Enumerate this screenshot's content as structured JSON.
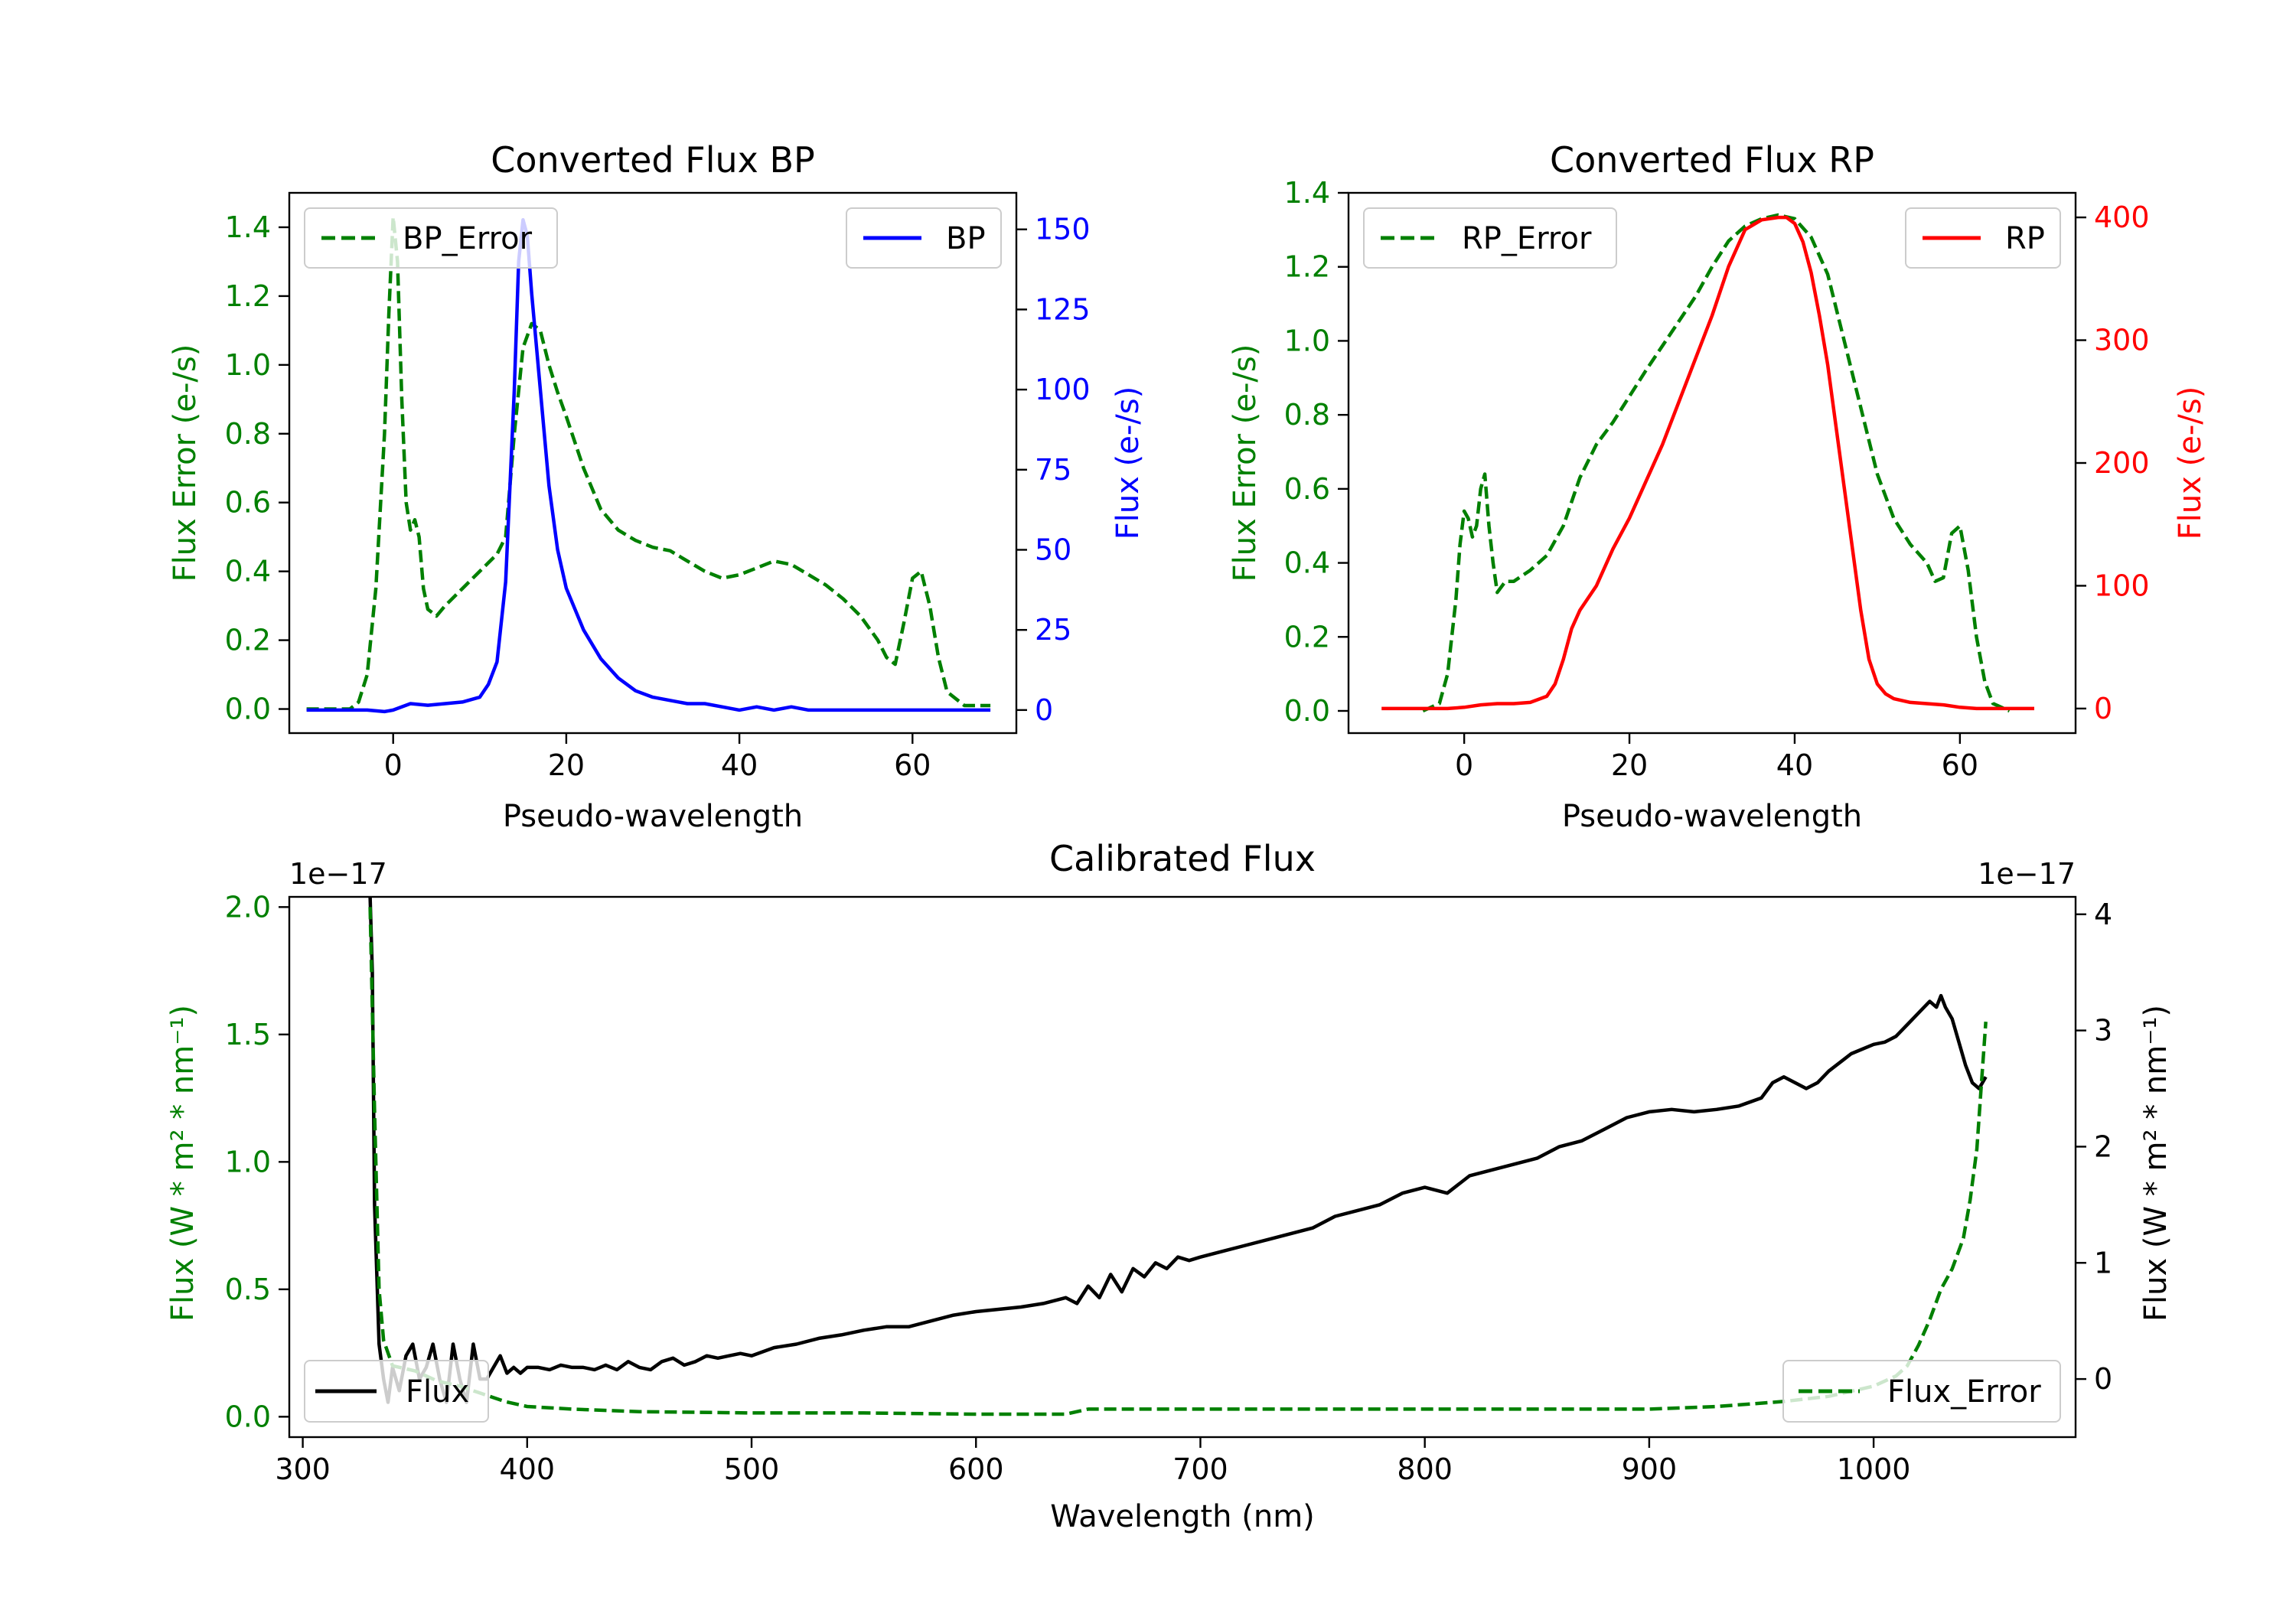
{
  "chart_data": [
    {
      "type": "line",
      "title": "Converted Flux BP",
      "xlabel": "Pseudo-wavelength",
      "ylabel_left": "Flux Error (e-/s)",
      "ylabel_right": "Flux (e-/s)",
      "xlim": [
        -12,
        72
      ],
      "ylim_left": [
        -0.07,
        1.5
      ],
      "ylim_right": [
        -7.2,
        161.4
      ],
      "xticks": [
        0,
        20,
        40,
        60
      ],
      "yticks_left": [
        0.0,
        0.2,
        0.4,
        0.6,
        0.8,
        1.0,
        1.2,
        1.4
      ],
      "yticks_right": [
        0,
        25,
        50,
        75,
        100,
        125,
        150
      ],
      "left_color": "#008000",
      "right_color": "#0000ff",
      "legend_left": {
        "label": "BP_Error",
        "position": "upper left"
      },
      "legend_right": {
        "label": "BP",
        "position": "upper right"
      },
      "series": [
        {
          "name": "BP_Error",
          "axis": "left",
          "color": "#008000",
          "dash": "dashed",
          "x": [
            -10,
            -5,
            -4,
            -3,
            -2,
            -1,
            -0.5,
            0,
            0.5,
            1,
            1.5,
            2,
            2.5,
            3,
            3.5,
            4,
            5,
            6,
            8,
            10,
            12,
            13,
            14,
            15,
            16,
            17,
            18,
            19,
            20,
            22,
            24,
            26,
            28,
            30,
            32,
            34,
            36,
            38,
            40,
            42,
            44,
            46,
            48,
            50,
            52,
            54,
            56,
            57,
            58,
            59,
            60,
            61,
            62,
            63,
            64,
            66,
            69
          ],
          "y": [
            0,
            0,
            0.02,
            0.1,
            0.35,
            0.8,
            1.15,
            1.43,
            1.3,
            0.9,
            0.6,
            0.52,
            0.55,
            0.5,
            0.35,
            0.29,
            0.27,
            0.3,
            0.35,
            0.4,
            0.45,
            0.5,
            0.8,
            1.05,
            1.12,
            1.1,
            1.0,
            0.92,
            0.85,
            0.7,
            0.58,
            0.52,
            0.49,
            0.47,
            0.46,
            0.43,
            0.4,
            0.38,
            0.39,
            0.41,
            0.43,
            0.42,
            0.39,
            0.36,
            0.32,
            0.27,
            0.2,
            0.15,
            0.13,
            0.25,
            0.38,
            0.4,
            0.3,
            0.15,
            0.05,
            0.01,
            0.01
          ]
        },
        {
          "name": "BP",
          "axis": "right",
          "color": "#0000ff",
          "dash": "solid",
          "x": [
            -10,
            -6,
            -3,
            -1,
            0,
            2,
            4,
            6,
            8,
            10,
            11,
            12,
            13,
            14,
            14.5,
            15,
            15.5,
            16,
            17,
            18,
            19,
            20,
            22,
            24,
            26,
            28,
            30,
            32,
            34,
            36,
            38,
            40,
            42,
            44,
            46,
            48,
            50,
            52,
            56,
            60,
            64,
            69
          ],
          "y": [
            0,
            0,
            0,
            -0.5,
            0,
            2,
            1.5,
            2,
            2.5,
            4,
            8,
            15,
            40,
            100,
            140,
            153,
            148,
            130,
            100,
            70,
            50,
            38,
            25,
            16,
            10,
            6,
            4,
            3,
            2,
            2,
            1,
            0,
            1,
            0,
            1,
            0,
            0,
            0,
            0,
            0,
            0,
            0
          ]
        }
      ]
    },
    {
      "type": "line",
      "title": "Converted Flux RP",
      "xlabel": "Pseudo-wavelength",
      "ylabel_left": "Flux Error (e-/s)",
      "ylabel_right": "Flux (e-/s)",
      "xlim": [
        -14,
        74
      ],
      "ylim_left": [
        -0.06,
        1.4
      ],
      "ylim_right": [
        -20,
        420
      ],
      "xticks": [
        0,
        20,
        40,
        60
      ],
      "yticks_left": [
        0.0,
        0.2,
        0.4,
        0.6,
        0.8,
        1.0,
        1.2,
        1.4
      ],
      "yticks_right": [
        0,
        100,
        200,
        300,
        400
      ],
      "left_color": "#008000",
      "right_color": "#ff0000",
      "legend_left": {
        "label": "RP_Error",
        "position": "upper left"
      },
      "legend_right": {
        "label": "RP",
        "position": "upper right"
      },
      "series": [
        {
          "name": "RP_Error",
          "axis": "left",
          "color": "#008000",
          "dash": "dashed",
          "x": [
            -5,
            -3,
            -2,
            -1,
            -0.5,
            0,
            0.5,
            1,
            1.5,
            2,
            2.5,
            3,
            3.5,
            4,
            5,
            6,
            8,
            10,
            12,
            14,
            16,
            18,
            20,
            22,
            25,
            28,
            30,
            32,
            34,
            36,
            38,
            40,
            42,
            44,
            46,
            48,
            50,
            52,
            54,
            56,
            57,
            58,
            59,
            60,
            61,
            62,
            63,
            64,
            66
          ],
          "y": [
            0,
            0.02,
            0.1,
            0.3,
            0.45,
            0.54,
            0.52,
            0.47,
            0.5,
            0.6,
            0.64,
            0.5,
            0.4,
            0.32,
            0.35,
            0.35,
            0.38,
            0.42,
            0.5,
            0.63,
            0.72,
            0.78,
            0.85,
            0.92,
            1.02,
            1.12,
            1.2,
            1.27,
            1.31,
            1.33,
            1.34,
            1.33,
            1.28,
            1.18,
            1.0,
            0.82,
            0.64,
            0.52,
            0.45,
            0.4,
            0.35,
            0.36,
            0.48,
            0.5,
            0.38,
            0.2,
            0.08,
            0.02,
            0.0
          ]
        },
        {
          "name": "RP",
          "axis": "right",
          "color": "#ff0000",
          "dash": "solid",
          "x": [
            -10,
            -2,
            0,
            2,
            4,
            6,
            8,
            10,
            11,
            12,
            13,
            14,
            16,
            18,
            20,
            22,
            24,
            26,
            28,
            30,
            32,
            34,
            36,
            38,
            39,
            40,
            41,
            42,
            43,
            44,
            45,
            46,
            47,
            48,
            49,
            50,
            51,
            52,
            54,
            56,
            58,
            60,
            62,
            64,
            69
          ],
          "y": [
            0,
            0,
            1,
            3,
            4,
            4,
            5,
            10,
            20,
            40,
            65,
            80,
            100,
            130,
            155,
            185,
            215,
            250,
            285,
            320,
            360,
            390,
            398,
            400,
            400,
            395,
            380,
            355,
            320,
            280,
            230,
            180,
            130,
            80,
            40,
            20,
            12,
            8,
            5,
            4,
            3,
            1,
            0,
            0,
            0
          ]
        }
      ]
    },
    {
      "type": "line",
      "title": "Calibrated Flux",
      "xlabel": "Wavelength (nm)",
      "ylabel_left": "Flux (W * m² * nm⁻¹)",
      "ylabel_right": "Flux (W * m² * nm⁻¹)",
      "offset_left": "1e−17",
      "offset_right": "1e−17",
      "xlim": [
        294,
        1090
      ],
      "ylim_left": [
        -0.08,
        2.04
      ],
      "ylim_right": [
        -0.5,
        4.15
      ],
      "xticks": [
        300,
        400,
        500,
        600,
        700,
        800,
        900,
        1000
      ],
      "yticks_left": [
        0.0,
        0.5,
        1.0,
        1.5,
        2.0
      ],
      "yticks_right": [
        0,
        1,
        2,
        3,
        4
      ],
      "left_color": "#008000",
      "right_color": "#000000",
      "legend_left": {
        "label": "Flux",
        "position": "lower left"
      },
      "legend_right": {
        "label": "Flux_Error",
        "position": "lower right"
      },
      "series": [
        {
          "name": "Flux",
          "axis": "right",
          "color": "#000000",
          "dash": "solid",
          "x": [
            330,
            331,
            332,
            334,
            336,
            338,
            340,
            343,
            346,
            349,
            352,
            355,
            358,
            361,
            364,
            367,
            370,
            373,
            376,
            379,
            382,
            385,
            388,
            391,
            394,
            397,
            400,
            405,
            410,
            415,
            420,
            425,
            430,
            435,
            440,
            445,
            450,
            455,
            460,
            465,
            470,
            475,
            480,
            485,
            490,
            495,
            500,
            510,
            520,
            530,
            540,
            550,
            560,
            570,
            580,
            590,
            600,
            610,
            620,
            630,
            640,
            645,
            650,
            655,
            660,
            665,
            670,
            675,
            680,
            685,
            690,
            695,
            700,
            710,
            720,
            730,
            740,
            750,
            760,
            770,
            780,
            790,
            800,
            810,
            820,
            830,
            840,
            850,
            860,
            870,
            880,
            890,
            900,
            910,
            920,
            930,
            940,
            950,
            955,
            960,
            965,
            970,
            975,
            980,
            990,
            1000,
            1005,
            1010,
            1015,
            1020,
            1025,
            1028,
            1030,
            1032,
            1035,
            1038,
            1041,
            1044,
            1047,
            1050
          ],
          "y": [
            4.15,
            3.5,
            1.5,
            0.3,
            0.0,
            -0.2,
            0.1,
            -0.1,
            0.2,
            0.3,
            0.0,
            0.1,
            0.3,
            0.0,
            -0.2,
            0.3,
            0.0,
            -0.2,
            0.3,
            0.0,
            0.0,
            0.1,
            0.2,
            0.05,
            0.1,
            0.05,
            0.1,
            0.1,
            0.08,
            0.12,
            0.1,
            0.1,
            0.08,
            0.12,
            0.08,
            0.15,
            0.1,
            0.08,
            0.15,
            0.18,
            0.12,
            0.15,
            0.2,
            0.18,
            0.2,
            0.22,
            0.2,
            0.27,
            0.3,
            0.35,
            0.38,
            0.42,
            0.45,
            0.45,
            0.5,
            0.55,
            0.58,
            0.6,
            0.62,
            0.65,
            0.7,
            0.65,
            0.8,
            0.7,
            0.9,
            0.75,
            0.95,
            0.88,
            1.0,
            0.95,
            1.05,
            1.02,
            1.05,
            1.1,
            1.15,
            1.2,
            1.25,
            1.3,
            1.4,
            1.45,
            1.5,
            1.6,
            1.65,
            1.6,
            1.75,
            1.8,
            1.85,
            1.9,
            2.0,
            2.05,
            2.15,
            2.25,
            2.3,
            2.32,
            2.3,
            2.32,
            2.35,
            2.42,
            2.55,
            2.6,
            2.55,
            2.5,
            2.55,
            2.65,
            2.8,
            2.88,
            2.9,
            2.95,
            3.05,
            3.15,
            3.25,
            3.2,
            3.3,
            3.2,
            3.1,
            2.9,
            2.7,
            2.55,
            2.5,
            2.6
          ]
        },
        {
          "name": "Flux_Error",
          "axis": "left",
          "color": "#008000",
          "dash": "dashed",
          "x": [
            330,
            332,
            334,
            336,
            340,
            350,
            360,
            370,
            380,
            390,
            400,
            420,
            450,
            500,
            550,
            600,
            640,
            650,
            700,
            750,
            800,
            850,
            900,
            930,
            960,
            980,
            1000,
            1010,
            1015,
            1020,
            1025,
            1030,
            1035,
            1040,
            1043,
            1046,
            1048,
            1050
          ],
          "y": [
            2.0,
            1.2,
            0.5,
            0.3,
            0.2,
            0.18,
            0.14,
            0.12,
            0.09,
            0.06,
            0.04,
            0.03,
            0.02,
            0.015,
            0.015,
            0.01,
            0.01,
            0.03,
            0.03,
            0.03,
            0.03,
            0.03,
            0.03,
            0.04,
            0.06,
            0.08,
            0.12,
            0.16,
            0.2,
            0.28,
            0.38,
            0.5,
            0.58,
            0.7,
            0.85,
            1.05,
            1.3,
            1.55
          ]
        }
      ]
    }
  ]
}
